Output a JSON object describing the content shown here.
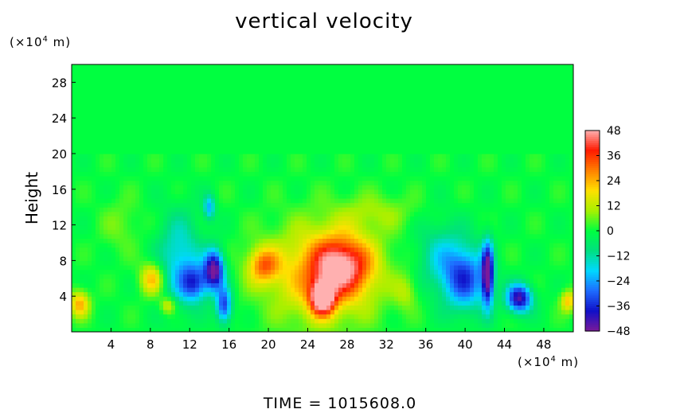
{
  "title": "vertical velocity",
  "y_unit": {
    "prefix": "(×10",
    "exp": "4",
    "suffix": " m)"
  },
  "x_unit": {
    "prefix": "(×10",
    "exp": "4",
    "suffix": " m)"
  },
  "time_label": "TIME  =  1015608.0",
  "chart_data": {
    "type": "heatmap",
    "title": "vertical velocity",
    "ylabel": "Height",
    "xlabel": "",
    "x_range": [
      0,
      51
    ],
    "y_range": [
      0,
      30
    ],
    "x_ticks": [
      4,
      8,
      12,
      16,
      20,
      24,
      28,
      32,
      36,
      40,
      44,
      48
    ],
    "y_ticks": [
      4,
      8,
      12,
      16,
      20,
      24,
      28
    ],
    "colorbar": {
      "range": [
        -48,
        48
      ],
      "ticks": [
        48,
        36,
        24,
        12,
        0,
        -12,
        -24,
        -36,
        -48
      ],
      "colors": [
        "#7a1a9a",
        "#1010c8",
        "#1e6cff",
        "#00d8ff",
        "#00e080",
        "#00ff40",
        "#a8f000",
        "#ffe000",
        "#ff8000",
        "#ff1a00",
        "#ffb0b0"
      ]
    },
    "features": [
      {
        "x": 0.8,
        "y": 3.2,
        "sx": 1.0,
        "sy": 1.5,
        "v": 24
      },
      {
        "x": 8.2,
        "y": 6.0,
        "sx": 1.2,
        "sy": 1.8,
        "v": 24
      },
      {
        "x": 9.8,
        "y": 3.0,
        "sx": 0.8,
        "sy": 1.0,
        "v": 18
      },
      {
        "x": 11.0,
        "y": 8.0,
        "sx": 2.2,
        "sy": 5.0,
        "v": -20
      },
      {
        "x": 12.5,
        "y": 5.5,
        "sx": 1.4,
        "sy": 2.0,
        "v": -28
      },
      {
        "x": 14.5,
        "y": 7.0,
        "sx": 1.0,
        "sy": 2.2,
        "v": -48
      },
      {
        "x": 15.5,
        "y": 3.0,
        "sx": 0.8,
        "sy": 2.0,
        "v": -34
      },
      {
        "x": 14.0,
        "y": 14.0,
        "sx": 0.6,
        "sy": 1.4,
        "v": -22
      },
      {
        "x": 19.5,
        "y": 7.5,
        "sx": 1.6,
        "sy": 2.0,
        "v": 26
      },
      {
        "x": 25.5,
        "y": 6.5,
        "sx": 5.5,
        "sy": 5.5,
        "v": 24
      },
      {
        "x": 27.5,
        "y": 7.5,
        "sx": 3.0,
        "sy": 3.2,
        "v": 34
      },
      {
        "x": 25.5,
        "y": 3.8,
        "sx": 1.2,
        "sy": 1.8,
        "v": 48
      },
      {
        "x": 31.0,
        "y": 13.5,
        "sx": 4.0,
        "sy": 2.0,
        "v": 8
      },
      {
        "x": 40.0,
        "y": 6.0,
        "sx": 2.2,
        "sy": 3.5,
        "v": -32
      },
      {
        "x": 42.3,
        "y": 6.5,
        "sx": 0.6,
        "sy": 3.5,
        "v": -48
      },
      {
        "x": 45.5,
        "y": 3.8,
        "sx": 1.3,
        "sy": 1.6,
        "v": -44
      },
      {
        "x": 37.5,
        "y": 8.5,
        "sx": 2.5,
        "sy": 4.0,
        "v": -14
      },
      {
        "x": 50.5,
        "y": 3.5,
        "sx": 0.8,
        "sy": 1.2,
        "v": 22
      },
      {
        "x": 34.0,
        "y": 4.5,
        "sx": 1.2,
        "sy": 2.0,
        "v": 10
      },
      {
        "x": 5.0,
        "y": 12.0,
        "sx": 2.0,
        "sy": 3.0,
        "v": 6
      }
    ]
  }
}
